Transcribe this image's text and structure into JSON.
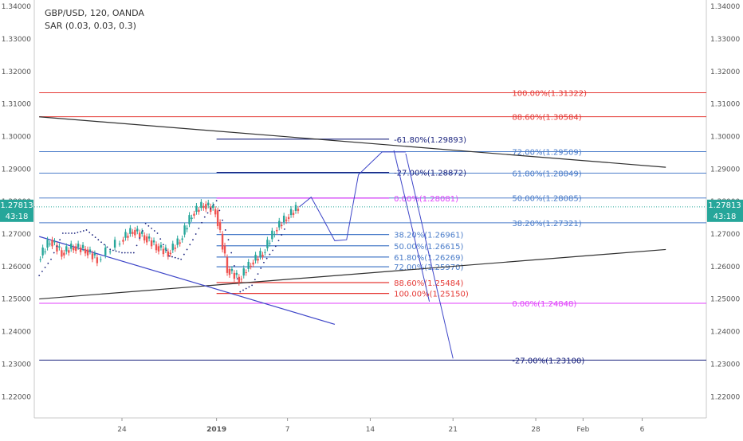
{
  "header": {
    "symbol_line": "GBP/USD, 120, OANDA",
    "indicator_line": "SAR (0.03, 0.03, 0.3)"
  },
  "price_badge": {
    "price": "1.27813",
    "countdown": "43:18",
    "color": "#26a69a"
  },
  "colors": {
    "red_level": "#e53935",
    "pink_level": "#e040fb",
    "fib_blue": "#4a7cc9",
    "navy": "#1a237e",
    "trend": "#303030",
    "channel": "#3d45c8",
    "sar": "#1a237e",
    "bull": "#26a69a",
    "bear": "#ef5350"
  },
  "chart_data": {
    "type": "candlestick",
    "title": "GBP/USD, 120, OANDA",
    "ylim": [
      1.2142,
      1.3405
    ],
    "y_ticks": [
      "1.34000",
      "1.33000",
      "1.32000",
      "1.31000",
      "1.30000",
      "1.29000",
      "1.28000",
      "1.27000",
      "1.26000",
      "1.25000",
      "1.24000",
      "1.23000",
      "1.22000"
    ],
    "x_ticks": [
      {
        "label": "24",
        "date": "2018-12-24"
      },
      {
        "label": "2019",
        "date": "2019-01-01"
      },
      {
        "label": "7",
        "date": "2019-01-07"
      },
      {
        "label": "14",
        "date": "2019-01-14"
      },
      {
        "label": "21",
        "date": "2019-01-21"
      },
      {
        "label": "28",
        "date": "2019-01-28"
      },
      {
        "label": "Feb",
        "date": "2019-02-01"
      },
      {
        "label": "6",
        "date": "2019-02-06"
      }
    ],
    "price_series": [
      {
        "date": "2018-12-17",
        "price": 1.262
      },
      {
        "date": "2018-12-18",
        "price": 1.268
      },
      {
        "date": "2018-12-19",
        "price": 1.264
      },
      {
        "date": "2018-12-20",
        "price": 1.266
      },
      {
        "date": "2018-12-21",
        "price": 1.265
      },
      {
        "date": "2018-12-22",
        "price": 1.262
      },
      {
        "date": "2018-12-24",
        "price": 1.268
      },
      {
        "date": "2018-12-25",
        "price": 1.271
      },
      {
        "date": "2018-12-26",
        "price": 1.269
      },
      {
        "date": "2018-12-27",
        "price": 1.266
      },
      {
        "date": "2018-12-28",
        "price": 1.264
      },
      {
        "date": "2018-12-29",
        "price": 1.268
      },
      {
        "date": "2018-12-30",
        "price": 1.276
      },
      {
        "date": "2018-12-31",
        "price": 1.279
      },
      {
        "date": "2019-01-01",
        "price": 1.277
      },
      {
        "date": "2019-01-02",
        "price": 1.259
      },
      {
        "date": "2019-01-03",
        "price": 1.256
      },
      {
        "date": "2019-01-04",
        "price": 1.261
      },
      {
        "date": "2019-01-05",
        "price": 1.264
      },
      {
        "date": "2019-01-06",
        "price": 1.271
      },
      {
        "date": "2019-01-07",
        "price": 1.275
      },
      {
        "date": "2019-01-08",
        "price": 1.2781
      }
    ],
    "sar_points": [
      {
        "date": "2018-12-17",
        "price": 1.257
      },
      {
        "date": "2018-12-18",
        "price": 1.262
      },
      {
        "date": "2018-12-19",
        "price": 1.27
      },
      {
        "date": "2018-12-20",
        "price": 1.27
      },
      {
        "date": "2018-12-21",
        "price": 1.271
      },
      {
        "date": "2018-12-22",
        "price": 1.268
      },
      {
        "date": "2018-12-23",
        "price": 1.265
      },
      {
        "date": "2018-12-24",
        "price": 1.264
      },
      {
        "date": "2018-12-25",
        "price": 1.264
      },
      {
        "date": "2018-12-26",
        "price": 1.273
      },
      {
        "date": "2018-12-27",
        "price": 1.27
      },
      {
        "date": "2018-12-28",
        "price": 1.263
      },
      {
        "date": "2018-12-29",
        "price": 1.262
      },
      {
        "date": "2018-12-30",
        "price": 1.268
      },
      {
        "date": "2018-12-31",
        "price": 1.275
      },
      {
        "date": "2019-01-01",
        "price": 1.28
      },
      {
        "date": "2019-01-02",
        "price": 1.268
      },
      {
        "date": "2019-01-03",
        "price": 1.252
      },
      {
        "date": "2019-01-04",
        "price": 1.254
      },
      {
        "date": "2019-01-05",
        "price": 1.261
      },
      {
        "date": "2019-01-06",
        "price": 1.266
      },
      {
        "date": "2019-01-07",
        "price": 1.273
      }
    ],
    "horizontal_levels": [
      {
        "label": "100.00%(1.31322)",
        "price": 1.31322,
        "color": "#e53935",
        "from": "2018-12-17",
        "label_date": "2019-01-26"
      },
      {
        "label": "88.60%(1.30584)",
        "price": 1.30584,
        "color": "#e53935",
        "from": "2018-12-17",
        "label_date": "2019-01-26"
      },
      {
        "label": "72.00%(1.29509)",
        "price": 1.29509,
        "color": "#4a7cc9",
        "from": "2018-12-17",
        "label_date": "2019-01-26"
      },
      {
        "label": "61.80%(1.28849)",
        "price": 1.28849,
        "color": "#4a7cc9",
        "from": "2018-12-17",
        "label_date": "2019-01-26"
      },
      {
        "label": "50.00%(1.28085)",
        "price": 1.28085,
        "color": "#4a7cc9",
        "from": "2018-12-17",
        "label_date": "2019-01-26"
      },
      {
        "label": "38.20%(1.27321)",
        "price": 1.27321,
        "color": "#4a7cc9",
        "from": "2018-12-17",
        "label_date": "2019-01-26"
      },
      {
        "label": "0.00%(1.24848)",
        "price": 1.24848,
        "color": "#e040fb",
        "from": "2018-12-17",
        "label_date": "2019-01-26"
      },
      {
        "label": "-27.00%(1.23100)",
        "price": 1.231,
        "color": "#1a237e",
        "from": "2018-12-17",
        "label_date": "2019-01-26"
      }
    ],
    "short_levels": [
      {
        "label": "-61.80%(1.29893)",
        "price": 1.29893,
        "color": "#1a237e",
        "from": "2019-01-01",
        "label_date": "2019-01-16"
      },
      {
        "label": "-27.00%(1.28872)",
        "price": 1.28872,
        "color": "#1a237e",
        "from": "2019-01-01",
        "label_date": "2019-01-16"
      },
      {
        "label": "0.00%(1.28081)",
        "price": 1.28081,
        "color": "#e040fb",
        "from": "2019-01-01",
        "label_date": "2019-01-16"
      },
      {
        "label": "38.20%(1.26961)",
        "price": 1.26961,
        "color": "#4a7cc9",
        "from": "2019-01-01",
        "label_date": "2019-01-16"
      },
      {
        "label": "50.00%(1.26615)",
        "price": 1.26615,
        "color": "#4a7cc9",
        "from": "2019-01-01",
        "label_date": "2019-01-16"
      },
      {
        "label": "61.80%(1.26269)",
        "price": 1.26269,
        "color": "#4a7cc9",
        "from": "2019-01-01",
        "label_date": "2019-01-16"
      },
      {
        "label": "72.00%(1.25970)",
        "price": 1.2597,
        "color": "#4a7cc9",
        "from": "2019-01-01",
        "label_date": "2019-01-16"
      },
      {
        "label": "88.60%(1.25484)",
        "price": 1.25484,
        "color": "#e53935",
        "from": "2019-01-01",
        "label_date": "2019-01-16"
      },
      {
        "label": "100.00%(1.25150)",
        "price": 1.2515,
        "color": "#e53935",
        "from": "2019-01-01",
        "label_date": "2019-01-16"
      }
    ],
    "trend_lines": [
      {
        "from": {
          "date": "2018-12-17",
          "price": 1.3058
        },
        "to": {
          "date": "2019-02-08",
          "price": 1.2903
        },
        "color": "#303030"
      },
      {
        "from": {
          "date": "2018-12-17",
          "price": 1.2498
        },
        "to": {
          "date": "2019-02-08",
          "price": 1.265
        },
        "color": "#303030"
      },
      {
        "from": {
          "date": "2018-12-17",
          "price": 1.269
        },
        "to": {
          "date": "2019-01-11",
          "price": 1.242
        },
        "color": "#3d45c8"
      }
    ],
    "projection_path": [
      {
        "date": "2019-01-08",
        "price": 1.2781
      },
      {
        "date": "2019-01-09",
        "price": 1.2811
      },
      {
        "date": "2019-01-10",
        "price": 1.2745
      },
      {
        "date": "2019-01-11",
        "price": 1.2677
      },
      {
        "date": "2019-01-12",
        "price": 1.268
      },
      {
        "date": "2019-01-13",
        "price": 1.288
      },
      {
        "date": "2019-01-15",
        "price": 1.295
      },
      {
        "date": "2019-01-17",
        "price": 1.295
      }
    ],
    "drop_lines": [
      {
        "from": {
          "date": "2019-01-16",
          "price": 1.2955
        },
        "to": {
          "date": "2019-01-19",
          "price": 1.249
        }
      },
      {
        "from": {
          "date": "2019-01-17",
          "price": 1.2945
        },
        "to": {
          "date": "2019-01-21",
          "price": 1.2315
        }
      }
    ],
    "last_price": 1.27813
  }
}
